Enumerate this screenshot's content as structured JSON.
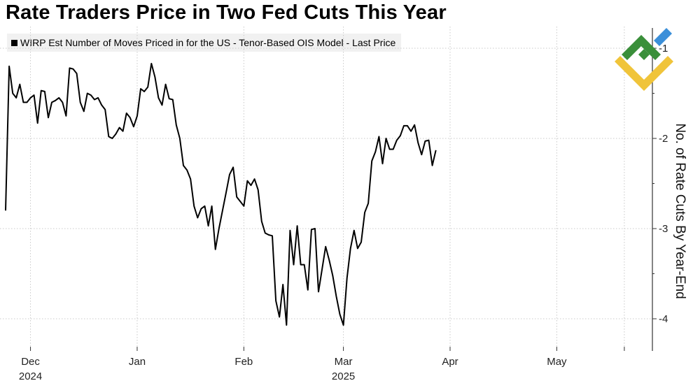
{
  "title": "Rate Traders Price in Two Fed Cuts This Year",
  "legend": {
    "label": "WIRP Est Number of Moves Priced in for the US - Tenor-Based OIS Model - Last Price",
    "color": "#000000"
  },
  "logo": {
    "name": "brand-logo",
    "colors": [
      "#3a8f3a",
      "#f0c43a",
      "#3b8fd9"
    ]
  },
  "chart_data": {
    "type": "line",
    "title": "Rate Traders Price in Two Fed Cuts This Year",
    "ylabel": "No. of Rate Cuts By Year-End",
    "xlabel": "",
    "ylim": [
      -4.3,
      -0.95
    ],
    "y_ticks": [
      -1,
      -2,
      -3,
      -4
    ],
    "y_tick_labels": [
      "-1",
      "-2",
      "-3",
      "-4"
    ],
    "y_axis_side": "right",
    "x_ticks": [
      {
        "pos": 7,
        "label": "Dec",
        "sublabel": "2024"
      },
      {
        "pos": 37,
        "label": "Jan",
        "sublabel": ""
      },
      {
        "pos": 67,
        "label": "Feb",
        "sublabel": ""
      },
      {
        "pos": 95,
        "label": "Mar",
        "sublabel": "2025"
      },
      {
        "pos": 125,
        "label": "Apr",
        "sublabel": ""
      },
      {
        "pos": 155,
        "label": "May",
        "sublabel": ""
      },
      {
        "pos": 174,
        "label": "",
        "sublabel": ""
      }
    ],
    "xlim": [
      0,
      181.5
    ],
    "series": [
      {
        "name": "WIRP Est Number of Moves Priced in for the US - Tenor-Based OIS Model - Last Price",
        "color": "#000000",
        "values": [
          -2.8,
          -1.2,
          -1.5,
          -1.55,
          -1.4,
          -1.6,
          -1.6,
          -1.55,
          -1.52,
          -1.83,
          -1.47,
          -1.48,
          -1.77,
          -1.6,
          -1.58,
          -1.55,
          -1.6,
          -1.75,
          -1.22,
          -1.23,
          -1.28,
          -1.6,
          -1.7,
          -1.5,
          -1.52,
          -1.57,
          -1.55,
          -1.63,
          -1.68,
          -1.98,
          -2.0,
          -1.95,
          -1.88,
          -1.92,
          -1.72,
          -1.77,
          -1.87,
          -1.75,
          -1.45,
          -1.48,
          -1.43,
          -1.17,
          -1.32,
          -1.55,
          -1.63,
          -1.4,
          -1.56,
          -1.57,
          -1.85,
          -2.0,
          -2.3,
          -2.35,
          -2.45,
          -2.75,
          -2.88,
          -2.78,
          -2.75,
          -2.97,
          -2.75,
          -3.23,
          -3.0,
          -2.8,
          -2.6,
          -2.4,
          -2.32,
          -2.65,
          -2.7,
          -2.75,
          -2.47,
          -2.52,
          -2.45,
          -2.57,
          -2.92,
          -3.05,
          -3.07,
          -3.08,
          -3.8,
          -3.98,
          -3.62,
          -4.07,
          -3.02,
          -3.4,
          -2.97,
          -3.4,
          -3.4,
          -3.68,
          -3.01,
          -3.0,
          -3.7,
          -3.45,
          -3.2,
          -3.35,
          -3.52,
          -3.75,
          -3.95,
          -4.07,
          -3.55,
          -3.22,
          -3.02,
          -3.22,
          -3.15,
          -2.82,
          -2.72,
          -2.25,
          -2.15,
          -1.98,
          -2.28,
          -2.0,
          -2.12,
          -2.12,
          -2.02,
          -1.97,
          -1.86,
          -1.86,
          -1.92,
          -1.85,
          -2.05,
          -2.18,
          -2.03,
          -2.02,
          -2.3,
          -2.13
        ]
      }
    ],
    "grid": true,
    "legend_position": "top-left"
  }
}
